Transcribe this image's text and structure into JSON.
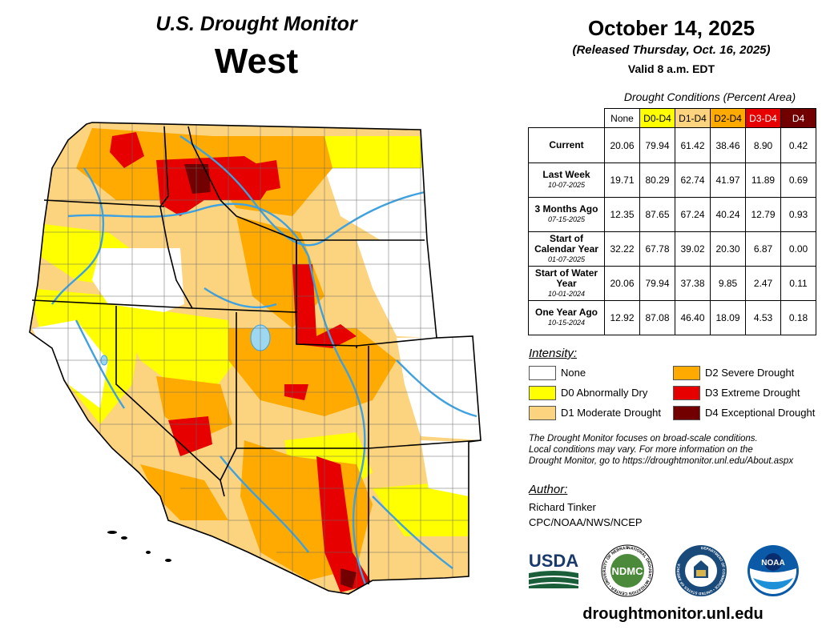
{
  "header": {
    "subtitle": "U.S. Drought Monitor",
    "region": "West",
    "date": "October 14, 2025",
    "released": "(Released Thursday, Oct. 16, 2025)",
    "valid": "Valid 8 a.m. EDT"
  },
  "table": {
    "caption": "Drought Conditions (Percent Area)",
    "columns": [
      {
        "label": "None",
        "color": "#ffffff",
        "text_color": "#000000"
      },
      {
        "label": "D0-D4",
        "color": "#ffff00",
        "text_color": "#000000"
      },
      {
        "label": "D1-D4",
        "color": "#fcd37f",
        "text_color": "#000000"
      },
      {
        "label": "D2-D4",
        "color": "#ffaa00",
        "text_color": "#000000"
      },
      {
        "label": "D3-D4",
        "color": "#e60000",
        "text_color": "#ffffff"
      },
      {
        "label": "D4",
        "color": "#730000",
        "text_color": "#ffffff"
      }
    ],
    "rows": [
      {
        "label": "Current",
        "date": "",
        "values": [
          "20.06",
          "79.94",
          "61.42",
          "38.46",
          "8.90",
          "0.42"
        ]
      },
      {
        "label": "Last Week",
        "date": "10-07-2025",
        "values": [
          "19.71",
          "80.29",
          "62.74",
          "41.97",
          "11.89",
          "0.69"
        ]
      },
      {
        "label": "3 Months Ago",
        "date": "07-15-2025",
        "values": [
          "12.35",
          "87.65",
          "67.24",
          "40.24",
          "12.79",
          "0.93"
        ]
      },
      {
        "label": "Start of Calendar Year",
        "date": "01-07-2025",
        "values": [
          "32.22",
          "67.78",
          "39.02",
          "20.30",
          "6.87",
          "0.00"
        ]
      },
      {
        "label": "Start of Water Year",
        "date": "10-01-2024",
        "values": [
          "20.06",
          "79.94",
          "37.38",
          "9.85",
          "2.47",
          "0.11"
        ]
      },
      {
        "label": "One Year Ago",
        "date": "10-15-2024",
        "values": [
          "12.92",
          "87.08",
          "46.40",
          "18.09",
          "4.53",
          "0.18"
        ]
      }
    ]
  },
  "legend": {
    "title": "Intensity:",
    "items": [
      {
        "label": "None",
        "color": "#ffffff"
      },
      {
        "label": "D0 Abnormally Dry",
        "color": "#ffff00"
      },
      {
        "label": "D1 Moderate Drought",
        "color": "#fcd37f"
      },
      {
        "label": "D2 Severe Drought",
        "color": "#ffaa00"
      },
      {
        "label": "D3 Extreme Drought",
        "color": "#e60000"
      },
      {
        "label": "D4 Exceptional Drought",
        "color": "#730000"
      }
    ]
  },
  "note": {
    "line1": "The Drought Monitor focuses on broad-scale conditions.",
    "line2": "Local conditions may vary. For more information on the",
    "line3": "Drought Monitor, go to https://droughtmonitor.unl.edu/About.aspx"
  },
  "author": {
    "heading": "Author:",
    "name": "Richard Tinker",
    "org": "CPC/NOAA/NWS/NCEP"
  },
  "logos": {
    "usda": "USDA",
    "ndmc": "NDMC",
    "ndmc_ring": "NATIONAL DROUGHT MITIGATION CENTER • UNIVERSITY OF NEBRASKA",
    "commerce_ring": "DEPARTMENT OF COMMERCE • UNITED STATES OF AMERICA",
    "noaa": "NOAA"
  },
  "footer": {
    "url": "droughtmonitor.unl.edu"
  },
  "map": {
    "colors": {
      "none": "#ffffff",
      "d0": "#ffff00",
      "d1": "#fcd37f",
      "d2": "#ffaa00",
      "d3": "#e60000",
      "d4": "#730000",
      "water": "#3ea1e0",
      "lake": "#9ed8f0"
    }
  }
}
